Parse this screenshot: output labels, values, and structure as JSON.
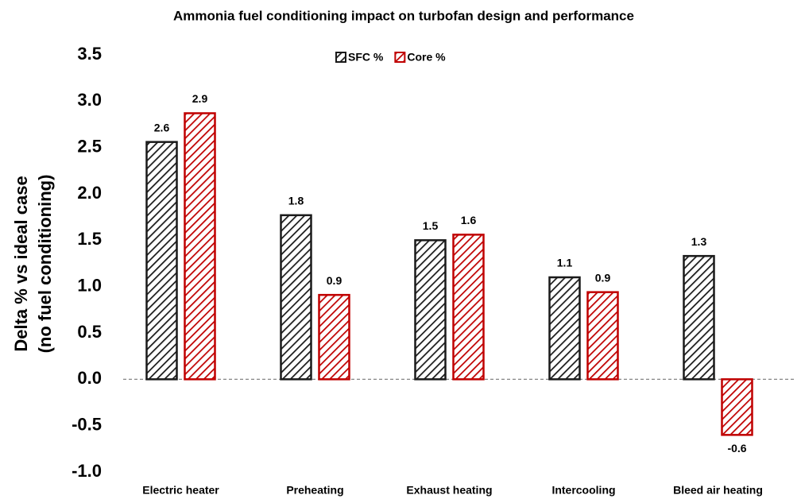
{
  "chart_data": {
    "type": "bar",
    "title": "Ammonia fuel conditioning impact on turbofan design and performance",
    "ylabel": [
      "Delta % vs ideal case",
      "(no fuel conditioning)"
    ],
    "categories": [
      "Electric heater",
      "Preheating",
      "Exhaust heating",
      "Intercooling",
      "Bleed air heating"
    ],
    "series": [
      {
        "name": "SFC %",
        "color": "#1a1a1a",
        "values": [
          2.56,
          1.77,
          1.5,
          1.1,
          1.33
        ],
        "value_labels": [
          "2.6",
          "1.8",
          "1.5",
          "1.1",
          "1.3"
        ]
      },
      {
        "name": "Core %",
        "color": "#c00000",
        "values": [
          2.87,
          0.91,
          1.56,
          0.94,
          -0.6
        ],
        "value_labels": [
          "2.9",
          "0.9",
          "1.6",
          "0.9",
          "-0.6"
        ]
      }
    ],
    "ylim": [
      -1,
      3.5
    ],
    "yticks": [
      {
        "value": -1,
        "label": "-1.0"
      },
      -0.5,
      {
        "value": 0,
        "label": "0.0"
      },
      0.5,
      {
        "value": 1,
        "label": "1.0"
      },
      1.5,
      {
        "value": 2,
        "label": "2.0"
      },
      2.5,
      {
        "value": 3,
        "label": "3.0"
      },
      3.5
    ],
    "grid": false,
    "legend": "top"
  }
}
